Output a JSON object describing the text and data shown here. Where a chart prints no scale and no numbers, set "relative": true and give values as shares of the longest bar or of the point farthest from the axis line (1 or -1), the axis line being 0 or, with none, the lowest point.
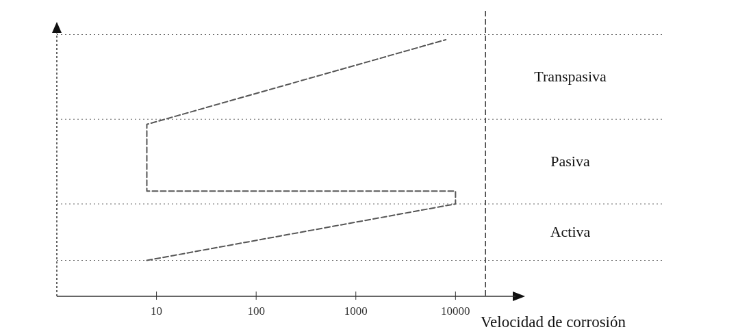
{
  "chart_data": {
    "type": "line",
    "relative": true,
    "log": "x",
    "xlim": [
      1,
      40000
    ],
    "xticks": [
      10,
      100,
      1000,
      10000
    ],
    "xlabel": "Velocidad de corrosión",
    "line_style": "dashed",
    "marker": "none",
    "grid": false,
    "series": [
      {
        "color": "#555555",
        "x": [
          8,
          10000,
          10000,
          8,
          8,
          8000
        ],
        "values": [
          0.14,
          0.36,
          0.41,
          0.41,
          0.67,
          1
        ]
      }
    ],
    "ref_lines": [
      {
        "axis": "x",
        "value": 20000,
        "color": "#333333",
        "line_style": "dashed"
      },
      {
        "axis": "y",
        "value": 0.14,
        "color": "#666666",
        "line_style": "dotted"
      },
      {
        "axis": "y",
        "value": 0.36,
        "color": "#666666",
        "line_style": "dotted"
      },
      {
        "axis": "y",
        "value": 0.69,
        "color": "#666666",
        "line_style": "dotted"
      },
      {
        "axis": "y",
        "value": 1.02,
        "color": "#666666",
        "line_style": "dotted"
      }
    ],
    "annotations": [
      "Activa",
      "Pasiva",
      "Transpasiva"
    ]
  }
}
